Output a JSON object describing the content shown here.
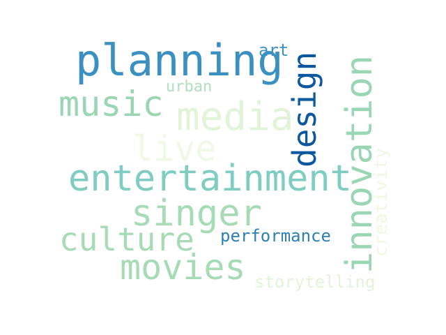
{
  "words": {
    "planning": "planning",
    "art": "art",
    "urban": "urban",
    "music": "music",
    "media": "media",
    "live": "live",
    "design": "design",
    "innovation": "innovation",
    "creativity": "creativity",
    "entertainment": "entertainment",
    "singer": "singer",
    "culture": "culture",
    "performance": "performance",
    "movies": "movies",
    "storytelling": "storytelling"
  },
  "colors": {
    "background": "#ffffff",
    "dark_blue": "#0b58a0",
    "blue": "#3a90c0",
    "teal": "#7ecdc0",
    "mint": "#a6dbb6",
    "pale_green": "#e2f4d8"
  }
}
